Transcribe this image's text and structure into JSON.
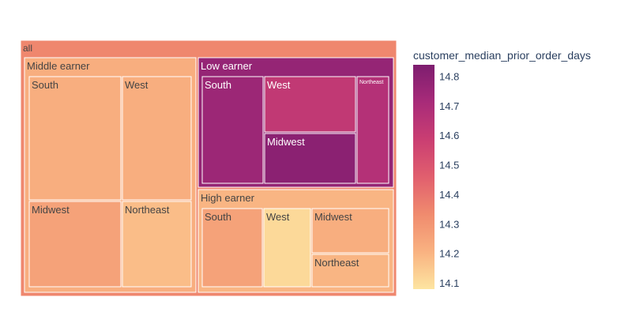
{
  "chart_data": {
    "type": "treemap",
    "root": {
      "label": "all",
      "value": 14.345,
      "children": [
        {
          "label": "Middle earner",
          "value": 14.22,
          "children": [
            {
              "label": "South",
              "value": 14.22
            },
            {
              "label": "West",
              "value": 14.22
            },
            {
              "label": "Midwest",
              "value": 14.26
            },
            {
              "label": "Northeast",
              "value": 14.18
            }
          ]
        },
        {
          "label": "Low earner",
          "value": 14.77,
          "children": [
            {
              "label": "South",
              "value": 14.75
            },
            {
              "label": "West",
              "value": 14.62
            },
            {
              "label": "Midwest",
              "value": 14.8
            },
            {
              "label": "Northeast",
              "value": 14.67
            }
          ]
        },
        {
          "label": "High earner",
          "value": 14.2,
          "children": [
            {
              "label": "South",
              "value": 14.26
            },
            {
              "label": "West",
              "value": 14.11
            },
            {
              "label": "Midwest",
              "value": 14.22
            },
            {
              "label": "Northeast",
              "value": 14.2
            }
          ]
        }
      ]
    },
    "colorbar": {
      "title": "customer_median_prior_order_days",
      "cmin": 14.08,
      "cmax": 14.84,
      "ticks": [
        14.1,
        14.2,
        14.3,
        14.4,
        14.5,
        14.6,
        14.7,
        14.8
      ],
      "colorscale": [
        "#fde5a1",
        "#f9b281",
        "#f08b6e",
        "#e15f6e",
        "#ca3e72",
        "#a82b79",
        "#7d1d6f"
      ]
    }
  }
}
